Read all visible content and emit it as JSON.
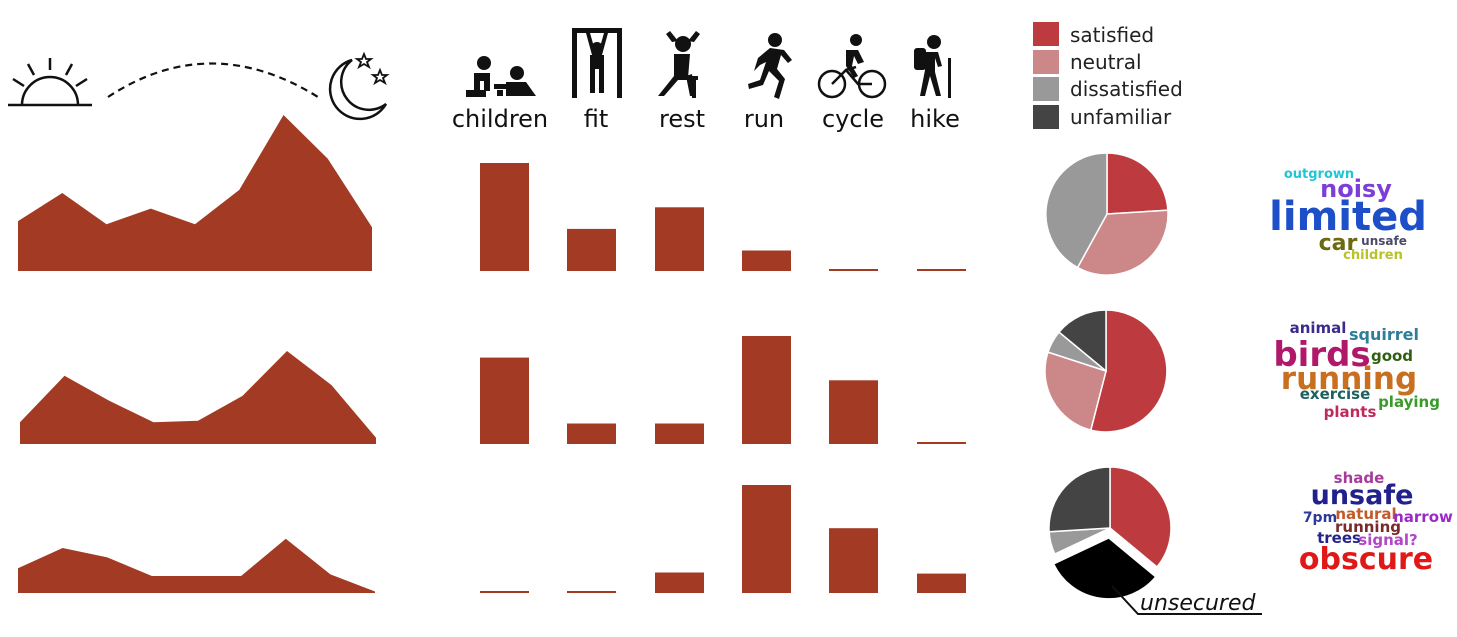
{
  "colors": {
    "bars": "#A33A24",
    "satisfied": "#BD3B3F",
    "neutral": "#CC8888",
    "dissatisfied": "#999999",
    "unfamiliar": "#444444",
    "unsecured": "#000000"
  },
  "header": {
    "day_icons": [
      "sunrise-icon",
      "dashed-arc",
      "moon-stars-icon"
    ],
    "activities": [
      {
        "label": "children",
        "icon": "children-playing-icon"
      },
      {
        "label": "fit",
        "icon": "pullup-bar-icon"
      },
      {
        "label": "rest",
        "icon": "person-resting-icon"
      },
      {
        "label": "run",
        "icon": "runner-icon"
      },
      {
        "label": "cycle",
        "icon": "cyclist-icon"
      },
      {
        "label": "hike",
        "icon": "hiker-icon"
      }
    ]
  },
  "legend": [
    {
      "label": "satisfied",
      "color": "#BD3B3F"
    },
    {
      "label": "neutral",
      "color": "#CC8888"
    },
    {
      "label": "dissatisfied",
      "color": "#999999"
    },
    {
      "label": "unfamiliar",
      "color": "#444444"
    }
  ],
  "chart_data": [
    {
      "type": "area",
      "row": 1,
      "values": [
        0.32,
        0.5,
        0.3,
        0.4,
        0.3,
        0.52,
        1.0,
        0.72,
        0.28
      ]
    },
    {
      "type": "area",
      "row": 2,
      "values": [
        0.14,
        0.44,
        0.28,
        0.14,
        0.15,
        0.31,
        0.6,
        0.38,
        0.04
      ]
    },
    {
      "type": "area",
      "row": 3,
      "values": [
        0.16,
        0.29,
        0.23,
        0.11,
        0.11,
        0.11,
        0.35,
        0.12,
        0.01
      ]
    },
    {
      "type": "bar",
      "row": 1,
      "categories": [
        "children",
        "fit",
        "rest",
        "run",
        "cycle",
        "hike"
      ],
      "values": [
        1.0,
        0.39,
        0.59,
        0.19,
        0.01,
        0.01
      ]
    },
    {
      "type": "bar",
      "row": 2,
      "categories": [
        "children",
        "fit",
        "rest",
        "run",
        "cycle",
        "hike"
      ],
      "values": [
        0.8,
        0.19,
        0.19,
        1.0,
        0.59,
        0.01
      ]
    },
    {
      "type": "bar",
      "row": 3,
      "categories": [
        "children",
        "fit",
        "rest",
        "run",
        "cycle",
        "hike"
      ],
      "values": [
        0.01,
        0.01,
        0.19,
        1.0,
        0.6,
        0.18
      ]
    },
    {
      "type": "pie",
      "row": 1,
      "labels": [
        "satisfied",
        "neutral",
        "dissatisfied"
      ],
      "values": [
        24,
        34,
        42
      ]
    },
    {
      "type": "pie",
      "row": 2,
      "labels": [
        "satisfied",
        "neutral",
        "dissatisfied",
        "unfamiliar"
      ],
      "values": [
        54,
        26,
        6,
        14
      ]
    },
    {
      "type": "pie",
      "row": 3,
      "labels": [
        "satisfied",
        "unsecured",
        "dissatisfied",
        "unfamiliar"
      ],
      "values": [
        36,
        32,
        6,
        26
      ],
      "exploded": "unsecured",
      "annotation": "unsecured"
    }
  ],
  "word_clouds": [
    [
      {
        "text": "outgrown",
        "color": "#22C5D5"
      },
      {
        "text": "noisy",
        "color": "#7B3FD8"
      },
      {
        "text": "limited",
        "color": "#1D4FC8"
      },
      {
        "text": "car",
        "color": "#6B6A10"
      },
      {
        "text": "unsafe",
        "color": "#4A4A6A"
      },
      {
        "text": "children",
        "color": "#B8C22A"
      }
    ],
    [
      {
        "text": "animal",
        "color": "#3B2B8C"
      },
      {
        "text": "squirrel",
        "color": "#2E7E9A"
      },
      {
        "text": "birds",
        "color": "#B0186A"
      },
      {
        "text": "good",
        "color": "#2F5F10"
      },
      {
        "text": "running",
        "color": "#C87020"
      },
      {
        "text": "exercise",
        "color": "#1E6060"
      },
      {
        "text": "playing",
        "color": "#3A9A2A"
      },
      {
        "text": "plants",
        "color": "#C02A5A"
      }
    ],
    [
      {
        "text": "shade",
        "color": "#A83A9A"
      },
      {
        "text": "unsafe",
        "color": "#22208C"
      },
      {
        "text": "7pm",
        "color": "#2A3A9A"
      },
      {
        "text": "natural",
        "color": "#C25A2A"
      },
      {
        "text": "narrow",
        "color": "#9A2AC8"
      },
      {
        "text": "running",
        "color": "#7A2A2A"
      },
      {
        "text": "trees",
        "color": "#24248A"
      },
      {
        "text": "signal?",
        "color": "#B048C8"
      },
      {
        "text": "obscure",
        "color": "#E01818"
      }
    ]
  ]
}
